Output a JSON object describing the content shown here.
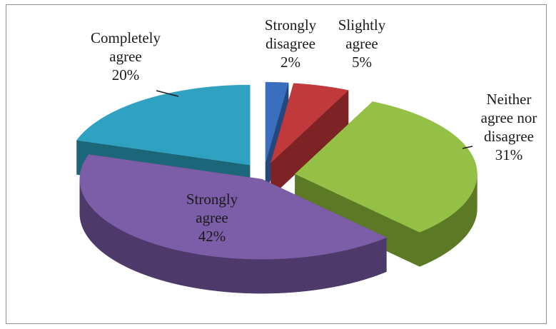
{
  "chart_data": {
    "type": "pie",
    "title": "",
    "categories": [
      "Strongly disagree",
      "Slightly agree",
      "Neither agree nor disagree",
      "Strongly agree",
      "Completely agree"
    ],
    "values": [
      2,
      5,
      31,
      42,
      20
    ],
    "unit": "%",
    "exploded": true,
    "three_d": true,
    "legend": "none",
    "colors": [
      "#3a6fbf",
      "#c0393b",
      "#94c045",
      "#7b5ea7",
      "#2fa2c1"
    ],
    "side_colors": [
      "#24477d",
      "#7e2325",
      "#5c7a26",
      "#4d3a6b",
      "#1c6679"
    ],
    "slices": [
      {
        "key": "strongly_disagree",
        "label_lines": [
          "Strongly",
          "disagree",
          "2%"
        ],
        "value": 2
      },
      {
        "key": "slightly_agree",
        "label_lines": [
          "Slightly",
          "agree",
          "5%"
        ],
        "value": 5
      },
      {
        "key": "neither",
        "label_lines": [
          "Neither",
          "agree nor",
          "disagree",
          "31%"
        ],
        "value": 31
      },
      {
        "key": "strongly_agree",
        "label_lines": [
          "Strongly",
          "agree",
          "42%"
        ],
        "value": 42
      },
      {
        "key": "completely_agree",
        "label_lines": [
          "Completely",
          "agree",
          "20%"
        ],
        "value": 20
      }
    ]
  }
}
